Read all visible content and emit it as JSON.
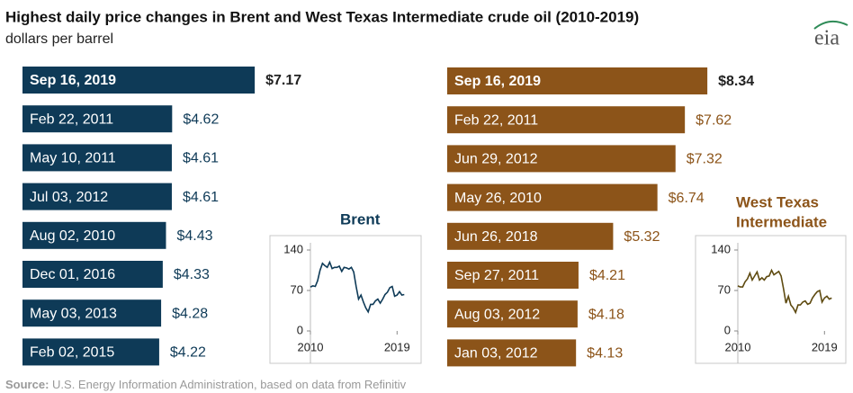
{
  "title": "Highest daily price changes in Brent and West Texas Intermediate crude oil (2010-2019)",
  "subtitle": "dollars per barrel",
  "logo": "eia",
  "source_label": "Source:",
  "source_text": "U.S. Energy Information Administration, based on data from Refinitiv",
  "chart_data": [
    {
      "type": "bar",
      "orientation": "horizontal",
      "categories": [
        "Sep 16, 2019",
        "Feb 22, 2011",
        "May 10, 2011",
        "Jul 03, 2012",
        "Aug 02, 2010",
        "Dec 01, 2016",
        "May 03, 2013",
        "Feb 02, 2015"
      ],
      "values": [
        7.17,
        4.62,
        4.61,
        4.61,
        4.43,
        4.33,
        4.28,
        4.22
      ],
      "value_labels": [
        "$7.17",
        "$4.62",
        "$4.61",
        "$4.61",
        "$4.43",
        "$4.33",
        "$4.28",
        "$4.22"
      ],
      "color": "#0e3a57",
      "xlim": [
        0,
        8
      ]
    },
    {
      "type": "line",
      "title": [
        "Brent"
      ],
      "color": "#0e3a57",
      "x": [
        2010,
        2010.25,
        2010.5,
        2010.75,
        2011,
        2011.25,
        2011.5,
        2011.75,
        2012,
        2012.25,
        2012.5,
        2012.75,
        2013,
        2013.25,
        2013.5,
        2013.75,
        2014,
        2014.25,
        2014.5,
        2014.75,
        2015,
        2015.25,
        2015.5,
        2015.75,
        2016,
        2016.25,
        2016.5,
        2016.75,
        2017,
        2017.25,
        2017.5,
        2017.75,
        2018,
        2018.25,
        2018.5,
        2018.75,
        2019,
        2019.25,
        2019.5,
        2019.75
      ],
      "values": [
        76,
        78,
        77,
        87,
        105,
        117,
        113,
        110,
        119,
        108,
        110,
        110,
        112,
        103,
        110,
        109,
        107,
        110,
        102,
        77,
        55,
        62,
        50,
        40,
        33,
        46,
        46,
        52,
        55,
        48,
        55,
        63,
        67,
        75,
        77,
        60,
        62,
        68,
        62,
        63
      ],
      "xlim": [
        2010,
        2020
      ],
      "xticks": [
        2010,
        2019
      ],
      "ylim": [
        0,
        140
      ],
      "yticks": [
        0,
        70,
        140
      ]
    },
    {
      "type": "bar",
      "orientation": "horizontal",
      "categories": [
        "Sep 16, 2019",
        "Feb 22, 2011",
        "Jun 29, 2012",
        "May 26, 2010",
        "Jun 26, 2018",
        "Sep 27, 2011",
        "Aug 03, 2012",
        "Jan 03, 2012"
      ],
      "values": [
        8.34,
        7.62,
        7.32,
        6.74,
        5.32,
        4.21,
        4.18,
        4.13
      ],
      "value_labels": [
        "$8.34",
        "$7.62",
        "$7.32",
        "$6.74",
        "$5.32",
        "$4.21",
        "$4.18",
        "$4.13"
      ],
      "color": "#8c5419",
      "xlim": [
        0,
        9
      ]
    },
    {
      "type": "line",
      "title": [
        "West Texas",
        "Intermediate"
      ],
      "color": "#5e4a10",
      "x": [
        2010,
        2010.25,
        2010.5,
        2010.75,
        2011,
        2011.25,
        2011.5,
        2011.75,
        2012,
        2012.25,
        2012.5,
        2012.75,
        2013,
        2013.25,
        2013.5,
        2013.75,
        2014,
        2014.25,
        2014.5,
        2014.75,
        2015,
        2015.25,
        2015.5,
        2015.75,
        2016,
        2016.25,
        2016.5,
        2016.75,
        2017,
        2017.25,
        2017.5,
        2017.75,
        2018,
        2018.25,
        2018.5,
        2018.75,
        2019,
        2019.25,
        2019.5,
        2019.75
      ],
      "values": [
        78,
        76,
        76,
        85,
        90,
        100,
        88,
        95,
        102,
        88,
        92,
        88,
        94,
        95,
        105,
        97,
        100,
        103,
        95,
        73,
        48,
        60,
        45,
        40,
        32,
        45,
        45,
        50,
        52,
        46,
        48,
        57,
        63,
        68,
        70,
        50,
        57,
        60,
        55,
        57
      ],
      "xlim": [
        2010,
        2020
      ],
      "xticks": [
        2010,
        2019
      ],
      "ylim": [
        0,
        140
      ],
      "yticks": [
        0,
        70,
        140
      ]
    }
  ]
}
